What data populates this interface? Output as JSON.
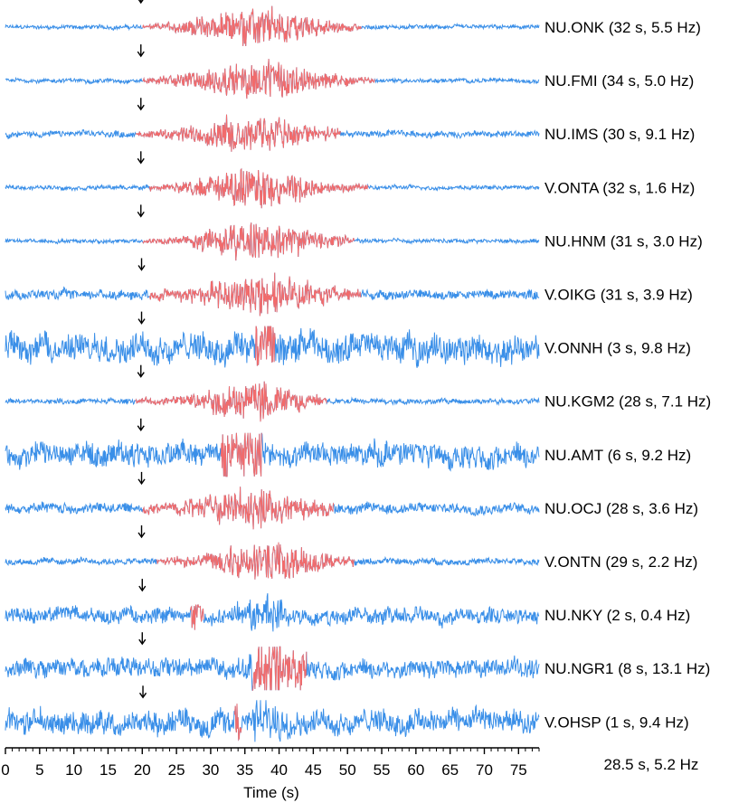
{
  "chart_data": {
    "type": "line",
    "xlabel": "Time (s)",
    "xlim": [
      0,
      78
    ],
    "xticks": [
      0,
      5,
      10,
      15,
      20,
      25,
      30,
      35,
      40,
      45,
      50,
      55,
      60,
      65,
      70,
      75
    ],
    "grid": false,
    "summary_label": "28.5 s, 5.2 Hz",
    "colors": {
      "noise": "#3a8fe8",
      "signal": "#f26b6b",
      "arrow": "#000000"
    },
    "traces": [
      {
        "label": "NU.ONK (32 s, 5.5 Hz)",
        "arrow_time": 19.8,
        "signal_start": 20.0,
        "signal_end": 52.0,
        "noise_amp": 0.08,
        "signal_amp": 1.0,
        "peak_time": 37.0,
        "style": "spindle"
      },
      {
        "label": "NU.FMI (34 s, 5.0 Hz)",
        "arrow_time": 19.8,
        "signal_start": 20.0,
        "signal_end": 54.0,
        "noise_amp": 0.08,
        "signal_amp": 1.0,
        "peak_time": 37.0,
        "style": "spindle"
      },
      {
        "label": "NU.IMS (30 s, 9.1 Hz)",
        "arrow_time": 19.8,
        "signal_start": 19.0,
        "signal_end": 49.0,
        "noise_amp": 0.12,
        "signal_amp": 1.0,
        "peak_time": 36.0,
        "style": "spindle"
      },
      {
        "label": "V.ONTA (32 s, 1.6 Hz)",
        "arrow_time": 19.8,
        "signal_start": 21.0,
        "signal_end": 53.0,
        "noise_amp": 0.08,
        "signal_amp": 1.0,
        "peak_time": 37.0,
        "style": "spindle"
      },
      {
        "label": "NU.HNM (31 s, 3.0 Hz)",
        "arrow_time": 19.8,
        "signal_start": 20.0,
        "signal_end": 51.0,
        "noise_amp": 0.08,
        "signal_amp": 1.0,
        "peak_time": 37.0,
        "style": "spindle"
      },
      {
        "label": "V.OIKG (31 s, 3.9 Hz)",
        "arrow_time": 19.9,
        "signal_start": 21.0,
        "signal_end": 52.0,
        "noise_amp": 0.18,
        "signal_amp": 1.0,
        "peak_time": 37.0,
        "style": "spindle"
      },
      {
        "label": "V.ONNH (3 s, 9.8 Hz)",
        "arrow_time": 19.9,
        "signal_start": 36.5,
        "signal_end": 39.5,
        "noise_amp": 0.55,
        "signal_amp": 0.9,
        "peak_time": 38.0,
        "style": "noisy"
      },
      {
        "label": "NU.KGM2 (28 s, 7.1 Hz)",
        "arrow_time": 19.8,
        "signal_start": 19.0,
        "signal_end": 47.0,
        "noise_amp": 0.1,
        "signal_amp": 1.0,
        "peak_time": 36.0,
        "style": "spindle"
      },
      {
        "label": "NU.AMT (6 s, 9.2 Hz)",
        "arrow_time": 19.8,
        "signal_start": 31.5,
        "signal_end": 37.5,
        "noise_amp": 0.45,
        "signal_amp": 0.95,
        "peak_time": 35.0,
        "style": "noisy"
      },
      {
        "label": "NU.OCJ (28 s, 3.6 Hz)",
        "arrow_time": 19.9,
        "signal_start": 20.0,
        "signal_end": 48.0,
        "noise_amp": 0.2,
        "signal_amp": 1.0,
        "peak_time": 36.0,
        "style": "spindle"
      },
      {
        "label": "V.ONTN (29 s, 2.2 Hz)",
        "arrow_time": 19.9,
        "signal_start": 22.0,
        "signal_end": 51.0,
        "noise_amp": 0.12,
        "signal_amp": 1.0,
        "peak_time": 38.0,
        "style": "spindle"
      },
      {
        "label": "NU.NKY (2 s, 0.4 Hz)",
        "arrow_time": 20.0,
        "signal_start": 27.0,
        "signal_end": 29.0,
        "noise_amp": 0.3,
        "signal_amp": 0.6,
        "peak_time": 38.0,
        "style": "noisy"
      },
      {
        "label": "NU.NGR1 (8 s, 13.1 Hz)",
        "arrow_time": 20.0,
        "signal_start": 36.0,
        "signal_end": 44.0,
        "noise_amp": 0.35,
        "signal_amp": 1.0,
        "peak_time": 39.0,
        "style": "noisy"
      },
      {
        "label": "V.OHSP (1 s, 9.4 Hz)",
        "arrow_time": 20.1,
        "signal_start": 33.5,
        "signal_end": 34.5,
        "noise_amp": 0.45,
        "signal_amp": 0.9,
        "peak_time": 38.0,
        "style": "noisy"
      }
    ]
  }
}
